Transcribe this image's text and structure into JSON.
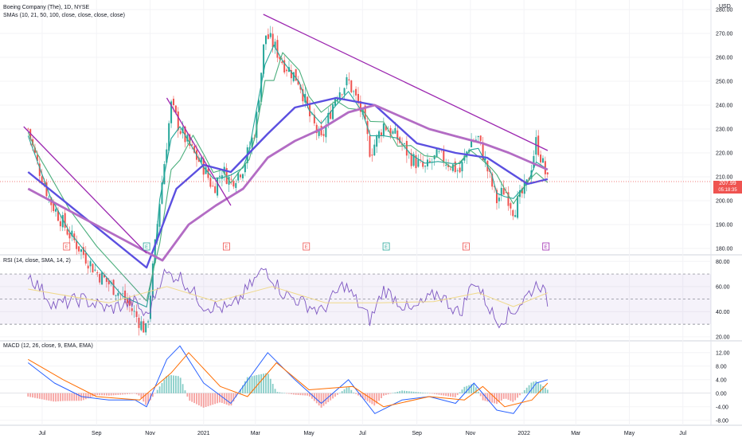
{
  "header": {
    "symbol": "Boeing Company (The), 1D, NYSE",
    "sma_legend": "SMAs (10, 21, 50, 100, close, close, close, close)",
    "currency": "USD"
  },
  "rsi_legend": "RSI (14, close, SMA, 14, 2)",
  "macd_legend": "MACD (12, 26, close, 9, EMA, EMA)",
  "price_badge": {
    "value": "207.99",
    "countdown": "05:18:35"
  },
  "colors": {
    "up": "#26a69a",
    "down": "#ef5350",
    "trendline": "#9c27b0",
    "sma10": "#26a69a",
    "sma21": "#4caf7d",
    "sma50": "#5b4fe0",
    "sma100": "#b36cc4",
    "rsi": "#7e57c2",
    "rsi_ma": "#f0d98a",
    "macd": "#2962ff",
    "signal": "#ff6d00"
  },
  "chart_data": [
    {
      "type": "candlestick",
      "title": "Boeing Company (The), 1D, NYSE",
      "x_ticks": [
        "Jul",
        "Sep",
        "Nov",
        "2021",
        "Mar",
        "May",
        "Jul",
        "Sep",
        "Nov",
        "2022",
        "Mar",
        "May",
        "Jul"
      ],
      "y_ticks": [
        180,
        190,
        200,
        210,
        220,
        230,
        240,
        250,
        260,
        270,
        280
      ],
      "ylim": [
        178,
        284
      ],
      "close_path": [
        {
          "x": "2020-06-15",
          "y": 230
        },
        {
          "x": "2020-06-25",
          "y": 216
        },
        {
          "x": "2020-07-10",
          "y": 200
        },
        {
          "x": "2020-08-01",
          "y": 186
        },
        {
          "x": "2020-09-01",
          "y": 170
        },
        {
          "x": "2020-10-01",
          "y": 160
        },
        {
          "x": "2020-10-28",
          "y": 145
        },
        {
          "x": "2020-11-05",
          "y": 175
        },
        {
          "x": "2020-11-12",
          "y": 200
        },
        {
          "x": "2020-11-25",
          "y": 240
        },
        {
          "x": "2020-12-05",
          "y": 230
        },
        {
          "x": "2020-12-20",
          "y": 220
        },
        {
          "x": "2021-01-01",
          "y": 214
        },
        {
          "x": "2021-01-12",
          "y": 205
        },
        {
          "x": "2021-01-22",
          "y": 213
        },
        {
          "x": "2021-02-01",
          "y": 208
        },
        {
          "x": "2021-02-15",
          "y": 214
        },
        {
          "x": "2021-02-22",
          "y": 222
        },
        {
          "x": "2021-03-01",
          "y": 230
        },
        {
          "x": "2021-03-12",
          "y": 270
        },
        {
          "x": "2021-03-22",
          "y": 265
        },
        {
          "x": "2021-04-01",
          "y": 258
        },
        {
          "x": "2021-04-20",
          "y": 250
        },
        {
          "x": "2021-05-01",
          "y": 236
        },
        {
          "x": "2021-05-15",
          "y": 225
        },
        {
          "x": "2021-06-01",
          "y": 245
        },
        {
          "x": "2021-06-15",
          "y": 250
        },
        {
          "x": "2021-07-01",
          "y": 236
        },
        {
          "x": "2021-07-10",
          "y": 220
        },
        {
          "x": "2021-07-25",
          "y": 232
        },
        {
          "x": "2021-08-10",
          "y": 226
        },
        {
          "x": "2021-08-25",
          "y": 218
        },
        {
          "x": "2021-09-10",
          "y": 213
        },
        {
          "x": "2021-09-25",
          "y": 219
        },
        {
          "x": "2021-10-10",
          "y": 215
        },
        {
          "x": "2021-10-20",
          "y": 212
        },
        {
          "x": "2021-11-01",
          "y": 225
        },
        {
          "x": "2021-11-10",
          "y": 226
        },
        {
          "x": "2021-11-25",
          "y": 207
        },
        {
          "x": "2021-12-01",
          "y": 200
        },
        {
          "x": "2021-12-10",
          "y": 205
        },
        {
          "x": "2021-12-20",
          "y": 196
        },
        {
          "x": "2022-01-05",
          "y": 207
        },
        {
          "x": "2022-01-15",
          "y": 225
        },
        {
          "x": "2022-01-28",
          "y": 208
        }
      ],
      "sma50_path": [
        {
          "x": "2020-06-15",
          "y": 212
        },
        {
          "x": "2020-10-28",
          "y": 172
        },
        {
          "x": "2020-12-01",
          "y": 205
        },
        {
          "x": "2021-01-01",
          "y": 215
        },
        {
          "x": "2021-02-01",
          "y": 212
        },
        {
          "x": "2021-03-15",
          "y": 228
        },
        {
          "x": "2021-04-15",
          "y": 239
        },
        {
          "x": "2021-06-01",
          "y": 243
        },
        {
          "x": "2021-07-15",
          "y": 240
        },
        {
          "x": "2021-09-01",
          "y": 224
        },
        {
          "x": "2021-10-15",
          "y": 220
        },
        {
          "x": "2021-11-20",
          "y": 218
        },
        {
          "x": "2022-01-05",
          "y": 207
        },
        {
          "x": "2022-01-28",
          "y": 209
        }
      ],
      "sma100_path": [
        {
          "x": "2020-06-15",
          "y": 205
        },
        {
          "x": "2020-11-15",
          "y": 175
        },
        {
          "x": "2020-12-15",
          "y": 190
        },
        {
          "x": "2021-01-15",
          "y": 198
        },
        {
          "x": "2021-02-15",
          "y": 205
        },
        {
          "x": "2021-03-15",
          "y": 218
        },
        {
          "x": "2021-04-15",
          "y": 225
        },
        {
          "x": "2021-05-15",
          "y": 230
        },
        {
          "x": "2021-06-15",
          "y": 237
        },
        {
          "x": "2021-07-15",
          "y": 240
        },
        {
          "x": "2021-08-15",
          "y": 235
        },
        {
          "x": "2021-09-15",
          "y": 230
        },
        {
          "x": "2021-10-15",
          "y": 227
        },
        {
          "x": "2021-11-15",
          "y": 224
        },
        {
          "x": "2021-12-15",
          "y": 220
        },
        {
          "x": "2022-01-28",
          "y": 213
        }
      ],
      "trendlines": [
        {
          "from": {
            "x": "2020-06-10",
            "y": 231
          },
          "to": {
            "x": "2020-10-28",
            "y": 178
          }
        },
        {
          "from": {
            "x": "2020-11-20",
            "y": 243
          },
          "to": {
            "x": "2021-02-01",
            "y": 198
          }
        },
        {
          "from": {
            "x": "2021-03-10",
            "y": 278
          },
          "to": {
            "x": "2022-01-28",
            "y": 221
          }
        }
      ],
      "last_price": 207.99,
      "earnings_dates": [
        {
          "x": "2020-07-29",
          "result": "down"
        },
        {
          "x": "2020-10-28",
          "result": "up"
        },
        {
          "x": "2021-01-27",
          "result": "down"
        },
        {
          "x": "2021-04-28",
          "result": "down"
        },
        {
          "x": "2021-07-28",
          "result": "up"
        },
        {
          "x": "2021-10-27",
          "result": "down"
        },
        {
          "x": "2022-01-26",
          "result": "upcoming"
        }
      ]
    },
    {
      "type": "line",
      "title": "RSI (14, close, SMA, 14, 2)",
      "y_ticks": [
        20,
        40,
        60,
        80
      ],
      "ylim": [
        18,
        84
      ],
      "bands": [
        30,
        70
      ],
      "rsi_path": [
        {
          "x": "2020-06-15",
          "y": 70
        },
        {
          "x": "2020-07-15",
          "y": 45
        },
        {
          "x": "2020-08-15",
          "y": 50
        },
        {
          "x": "2020-09-15",
          "y": 42
        },
        {
          "x": "2020-10-15",
          "y": 48
        },
        {
          "x": "2020-10-28",
          "y": 35
        },
        {
          "x": "2020-11-15",
          "y": 70
        },
        {
          "x": "2020-12-05",
          "y": 68
        },
        {
          "x": "2021-01-01",
          "y": 45
        },
        {
          "x": "2021-02-01",
          "y": 42
        },
        {
          "x": "2021-03-12",
          "y": 75
        },
        {
          "x": "2021-04-01",
          "y": 55
        },
        {
          "x": "2021-05-15",
          "y": 40
        },
        {
          "x": "2021-06-10",
          "y": 62
        },
        {
          "x": "2021-07-10",
          "y": 33
        },
        {
          "x": "2021-07-25",
          "y": 58
        },
        {
          "x": "2021-08-25",
          "y": 40
        },
        {
          "x": "2021-09-25",
          "y": 55
        },
        {
          "x": "2021-10-20",
          "y": 38
        },
        {
          "x": "2021-11-05",
          "y": 66
        },
        {
          "x": "2021-12-01",
          "y": 32
        },
        {
          "x": "2021-12-20",
          "y": 40
        },
        {
          "x": "2022-01-18",
          "y": 64
        },
        {
          "x": "2022-01-28",
          "y": 48
        }
      ],
      "rsi_ma_path": [
        {
          "x": "2020-06-15",
          "y": 58
        },
        {
          "x": "2020-09-15",
          "y": 47
        },
        {
          "x": "2020-11-20",
          "y": 60
        },
        {
          "x": "2021-01-15",
          "y": 48
        },
        {
          "x": "2021-03-20",
          "y": 60
        },
        {
          "x": "2021-05-20",
          "y": 47
        },
        {
          "x": "2021-07-20",
          "y": 47
        },
        {
          "x": "2021-09-20",
          "y": 48
        },
        {
          "x": "2021-11-10",
          "y": 55
        },
        {
          "x": "2021-12-20",
          "y": 44
        },
        {
          "x": "2022-01-28",
          "y": 55
        }
      ]
    },
    {
      "type": "line",
      "title": "MACD (12, 26, close, 9, EMA, EMA)",
      "y_ticks": [
        -8,
        -4,
        0,
        4,
        8,
        12
      ],
      "ylim": [
        -9,
        15
      ],
      "macd_path": [
        {
          "x": "2020-06-15",
          "y": 9
        },
        {
          "x": "2020-07-15",
          "y": 3
        },
        {
          "x": "2020-08-15",
          "y": -1
        },
        {
          "x": "2020-09-15",
          "y": -2
        },
        {
          "x": "2020-10-15",
          "y": -2
        },
        {
          "x": "2020-10-28",
          "y": -4
        },
        {
          "x": "2020-11-20",
          "y": 10
        },
        {
          "x": "2020-12-05",
          "y": 14
        },
        {
          "x": "2021-01-01",
          "y": 3
        },
        {
          "x": "2021-02-01",
          "y": -3
        },
        {
          "x": "2021-03-15",
          "y": 12
        },
        {
          "x": "2021-04-15",
          "y": 4
        },
        {
          "x": "2021-05-15",
          "y": -3
        },
        {
          "x": "2021-06-15",
          "y": 4
        },
        {
          "x": "2021-07-15",
          "y": -6
        },
        {
          "x": "2021-08-15",
          "y": -2
        },
        {
          "x": "2021-09-15",
          "y": -1
        },
        {
          "x": "2021-10-15",
          "y": -3
        },
        {
          "x": "2021-11-05",
          "y": 3
        },
        {
          "x": "2021-12-01",
          "y": -5
        },
        {
          "x": "2021-12-20",
          "y": -6
        },
        {
          "x": "2022-01-15",
          "y": 3
        },
        {
          "x": "2022-01-28",
          "y": 4
        }
      ],
      "signal_path": [
        {
          "x": "2020-06-15",
          "y": 10
        },
        {
          "x": "2020-07-25",
          "y": 4
        },
        {
          "x": "2020-09-01",
          "y": -1
        },
        {
          "x": "2020-10-20",
          "y": -2
        },
        {
          "x": "2020-11-25",
          "y": 6
        },
        {
          "x": "2020-12-15",
          "y": 12
        },
        {
          "x": "2021-01-20",
          "y": 2
        },
        {
          "x": "2021-02-20",
          "y": -1
        },
        {
          "x": "2021-03-25",
          "y": 9
        },
        {
          "x": "2021-05-01",
          "y": 1
        },
        {
          "x": "2021-06-20",
          "y": 2
        },
        {
          "x": "2021-07-25",
          "y": -4
        },
        {
          "x": "2021-09-15",
          "y": -1
        },
        {
          "x": "2021-10-25",
          "y": -2
        },
        {
          "x": "2021-11-15",
          "y": 2
        },
        {
          "x": "2021-12-10",
          "y": -4
        },
        {
          "x": "2022-01-10",
          "y": -2
        },
        {
          "x": "2022-01-28",
          "y": 3
        }
      ]
    }
  ]
}
